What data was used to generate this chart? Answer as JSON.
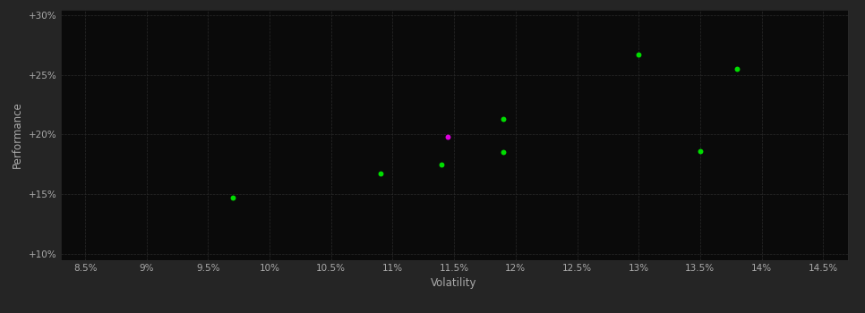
{
  "background_color": "#252525",
  "plot_bg_color": "#0a0a0a",
  "grid_color": "#2a2a2a",
  "text_color": "#aaaaaa",
  "xlabel": "Volatility",
  "ylabel": "Performance",
  "xlim": [
    0.083,
    0.147
  ],
  "ylim": [
    0.095,
    0.305
  ],
  "xticks": [
    0.085,
    0.09,
    0.095,
    0.1,
    0.105,
    0.11,
    0.115,
    0.12,
    0.125,
    0.13,
    0.135,
    0.14,
    0.145
  ],
  "xtick_labels": [
    "8.5%",
    "9%",
    "9.5%",
    "10%",
    "10.5%",
    "11%",
    "11.5%",
    "12%",
    "12.5%",
    "13%",
    "13.5%",
    "14%",
    "14.5%"
  ],
  "yticks": [
    0.1,
    0.15,
    0.2,
    0.25,
    0.3
  ],
  "ytick_labels": [
    "+10%",
    "+15%",
    "+20%",
    "+25%",
    "+30%"
  ],
  "green_points": [
    [
      0.097,
      0.147
    ],
    [
      0.109,
      0.167
    ],
    [
      0.114,
      0.175
    ],
    [
      0.119,
      0.185
    ],
    [
      0.119,
      0.213
    ],
    [
      0.13,
      0.267
    ],
    [
      0.135,
      0.186
    ],
    [
      0.138,
      0.255
    ]
  ],
  "magenta_points": [
    [
      0.1145,
      0.198
    ]
  ],
  "green_color": "#00dd00",
  "magenta_color": "#dd00dd",
  "marker_size": 18,
  "tick_fontsize": 7.5,
  "label_fontsize": 8.5,
  "figsize": [
    9.66,
    3.5
  ],
  "dpi": 100
}
